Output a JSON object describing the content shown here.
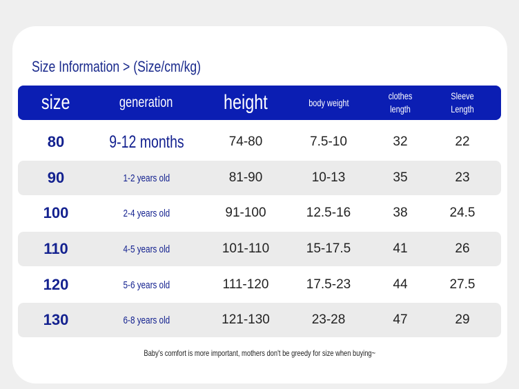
{
  "header": {
    "title": "Size Information > (Size/cm/kg)"
  },
  "table": {
    "columns": [
      "size",
      "generation",
      "height",
      "body weight",
      "clothes length",
      "Sleeve Length"
    ],
    "rows": [
      [
        "80",
        "9-12 months",
        "74-80",
        "7.5-10",
        "32",
        "22"
      ],
      [
        "90",
        "1-2 years old",
        "81-90",
        "10-13",
        "35",
        "23"
      ],
      [
        "100",
        "2-4 years old",
        "91-100",
        "12.5-16",
        "38",
        "24.5"
      ],
      [
        "110",
        "4-5 years old",
        "101-110",
        "15-17.5",
        "41",
        "26"
      ],
      [
        "120",
        "5-6 years old",
        "111-120",
        "17.5-23",
        "44",
        "27.5"
      ],
      [
        "130",
        "6-8 years old",
        "121-130",
        "23-28",
        "47",
        "29"
      ]
    ]
  },
  "footer": {
    "note": "Baby's comfort is more important, mothers don't be greedy for size when buying~"
  }
}
